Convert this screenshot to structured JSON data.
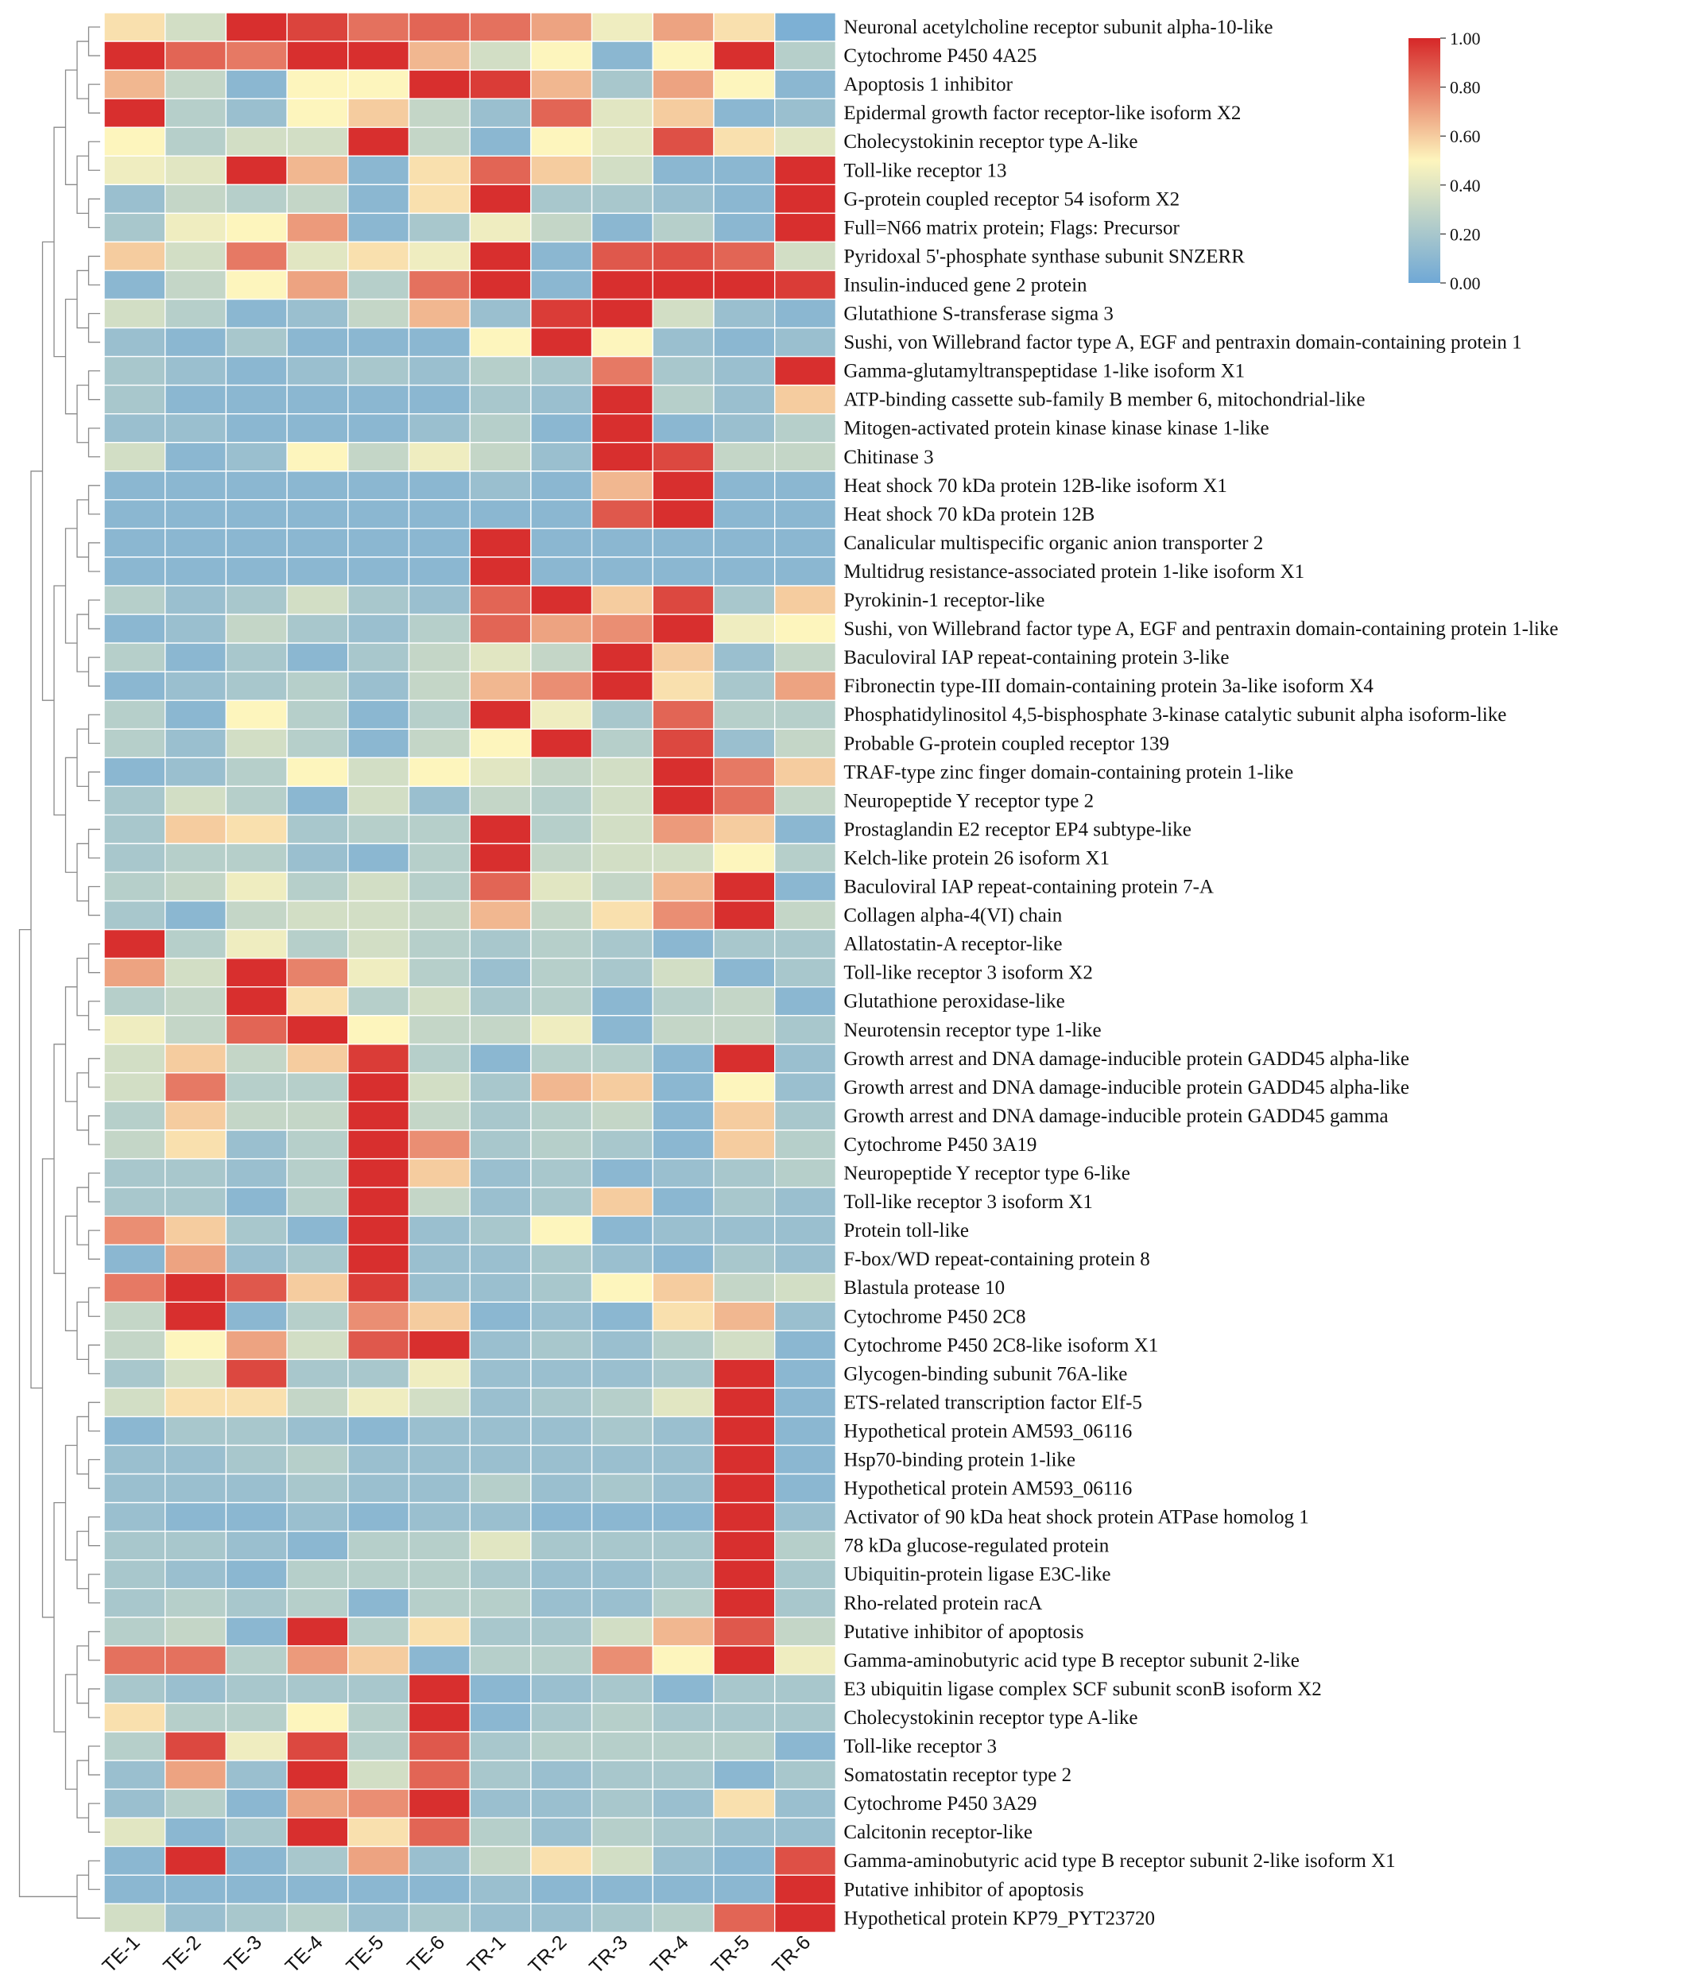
{
  "chart_data": {
    "type": "heatmap",
    "title": "",
    "columns": [
      "TE-1",
      "TE-2",
      "TE-3",
      "TE-4",
      "TE-5",
      "TE-6",
      "TR-1",
      "TR-2",
      "TR-3",
      "TR-4",
      "TR-5",
      "TR-6"
    ],
    "rows": [
      "Neuronal acetylcholine receptor subunit alpha-10-like",
      "Cytochrome P450 4A25",
      "Apoptosis 1 inhibitor",
      "Epidermal growth factor receptor-like isoform X2",
      "Cholecystokinin receptor type A-like",
      "Toll-like receptor 13",
      "G-protein coupled receptor 54 isoform X2",
      "Full=N66 matrix protein; Flags: Precursor",
      "Pyridoxal 5'-phosphate synthase subunit SNZERR",
      "Insulin-induced gene 2 protein",
      "Glutathione S-transferase sigma 3",
      "Sushi, von Willebrand factor type A, EGF and pentraxin domain-containing protein 1",
      "Gamma-glutamyltranspeptidase 1-like isoform X1",
      "ATP-binding cassette sub-family B member 6, mitochondrial-like",
      "Mitogen-activated protein kinase kinase kinase 1-like",
      "Chitinase 3",
      "Heat shock 70 kDa protein 12B-like isoform X1",
      "Heat shock 70 kDa protein 12B",
      "Canalicular multispecific organic anion transporter 2",
      "Multidrug resistance-associated protein 1-like isoform X1",
      "Pyrokinin-1 receptor-like",
      "Sushi, von Willebrand factor type A, EGF and pentraxin domain-containing protein 1-like",
      "Baculoviral IAP repeat-containing protein 3-like",
      "Fibronectin type-III domain-containing protein 3a-like isoform X4",
      "Phosphatidylinositol 4,5-bisphosphate 3-kinase catalytic subunit alpha isoform-like",
      "Probable G-protein coupled receptor 139",
      "TRAF-type zinc finger domain-containing protein 1-like",
      "Neuropeptide Y receptor type 2",
      "Prostaglandin E2 receptor EP4 subtype-like",
      "Kelch-like protein 26 isoform X1",
      "Baculoviral IAP repeat-containing protein 7-A",
      "Collagen alpha-4(VI) chain",
      "Allatostatin-A receptor-like",
      "Toll-like receptor 3 isoform X2",
      "Glutathione peroxidase-like",
      "Neurotensin receptor type 1-like",
      "Growth arrest and DNA damage-inducible protein GADD45 alpha-like",
      "Growth arrest and DNA damage-inducible protein GADD45 alpha-like",
      "Growth arrest and DNA damage-inducible protein GADD45 gamma",
      "Cytochrome P450 3A19",
      "Neuropeptide Y receptor type 6-like",
      "Toll-like receptor 3 isoform X1",
      "Protein toll-like",
      "F-box/WD repeat-containing protein 8",
      "Blastula protease 10",
      "Cytochrome P450 2C8",
      "Cytochrome P450 2C8-like isoform X1",
      "Glycogen-binding subunit 76A-like",
      "ETS-related transcription factor Elf-5",
      "Hypothetical protein AM593_06116",
      "Hsp70-binding protein 1-like",
      "Hypothetical protein AM593_06116",
      "Activator of 90 kDa heat shock protein ATPase homolog 1",
      "78 kDa glucose-regulated protein",
      "Ubiquitin-protein ligase E3C-like",
      "Rho-related protein racA",
      "Putative inhibitor of apoptosis",
      "Gamma-aminobutyric acid type B receptor subunit 2-like",
      "E3 ubiquitin ligase complex SCF subunit sconB isoform X2",
      "Cholecystokinin receptor type A-like",
      "Toll-like receptor 3",
      "Somatostatin receptor type 2",
      "Cytochrome P450 3A29",
      "Calcitonin receptor-like",
      "Gamma-aminobutyric acid type B receptor subunit 2-like isoform X1",
      "Putative inhibitor of apoptosis",
      "Hypothetical protein KP79_PYT23720"
    ],
    "values": [
      [
        0.55,
        0.35,
        0.98,
        0.93,
        0.82,
        0.85,
        0.82,
        0.7,
        0.45,
        0.7,
        0.55,
        0.05
      ],
      [
        0.98,
        0.85,
        0.8,
        0.98,
        0.98,
        0.65,
        0.35,
        0.5,
        0.1,
        0.5,
        0.98,
        0.25
      ],
      [
        0.65,
        0.3,
        0.1,
        0.5,
        0.5,
        0.98,
        0.95,
        0.65,
        0.2,
        0.7,
        0.5,
        0.1
      ],
      [
        0.98,
        0.25,
        0.15,
        0.5,
        0.6,
        0.3,
        0.15,
        0.85,
        0.4,
        0.6,
        0.1,
        0.15
      ],
      [
        0.5,
        0.25,
        0.35,
        0.35,
        0.98,
        0.3,
        0.1,
        0.5,
        0.4,
        0.9,
        0.55,
        0.4
      ],
      [
        0.45,
        0.4,
        0.98,
        0.65,
        0.1,
        0.55,
        0.85,
        0.6,
        0.35,
        0.1,
        0.1,
        0.98
      ],
      [
        0.15,
        0.3,
        0.25,
        0.3,
        0.1,
        0.55,
        0.98,
        0.2,
        0.2,
        0.15,
        0.1,
        0.98
      ],
      [
        0.2,
        0.45,
        0.5,
        0.72,
        0.1,
        0.2,
        0.45,
        0.3,
        0.1,
        0.25,
        0.1,
        0.98
      ],
      [
        0.6,
        0.35,
        0.8,
        0.4,
        0.55,
        0.45,
        0.98,
        0.1,
        0.88,
        0.9,
        0.85,
        0.35
      ],
      [
        0.1,
        0.3,
        0.5,
        0.7,
        0.25,
        0.82,
        0.98,
        0.1,
        0.98,
        0.98,
        0.98,
        0.95
      ],
      [
        0.35,
        0.25,
        0.1,
        0.15,
        0.3,
        0.65,
        0.15,
        0.95,
        0.98,
        0.35,
        0.15,
        0.1
      ],
      [
        0.15,
        0.1,
        0.2,
        0.1,
        0.1,
        0.1,
        0.5,
        0.98,
        0.5,
        0.15,
        0.1,
        0.15
      ],
      [
        0.2,
        0.15,
        0.1,
        0.15,
        0.2,
        0.15,
        0.25,
        0.2,
        0.8,
        0.2,
        0.15,
        0.98
      ],
      [
        0.2,
        0.1,
        0.1,
        0.1,
        0.1,
        0.1,
        0.2,
        0.15,
        0.98,
        0.25,
        0.15,
        0.6
      ],
      [
        0.15,
        0.15,
        0.1,
        0.1,
        0.1,
        0.15,
        0.25,
        0.1,
        0.98,
        0.1,
        0.15,
        0.25
      ],
      [
        0.35,
        0.1,
        0.15,
        0.5,
        0.3,
        0.45,
        0.3,
        0.15,
        0.98,
        0.92,
        0.3,
        0.3
      ],
      [
        0.1,
        0.1,
        0.1,
        0.1,
        0.1,
        0.1,
        0.15,
        0.1,
        0.65,
        0.98,
        0.1,
        0.1
      ],
      [
        0.1,
        0.1,
        0.1,
        0.1,
        0.1,
        0.1,
        0.1,
        0.1,
        0.88,
        0.98,
        0.1,
        0.1
      ],
      [
        0.1,
        0.1,
        0.1,
        0.1,
        0.1,
        0.1,
        0.98,
        0.1,
        0.1,
        0.1,
        0.1,
        0.1
      ],
      [
        0.1,
        0.1,
        0.1,
        0.1,
        0.1,
        0.1,
        0.98,
        0.1,
        0.1,
        0.1,
        0.1,
        0.1
      ],
      [
        0.25,
        0.15,
        0.2,
        0.35,
        0.2,
        0.15,
        0.85,
        0.98,
        0.6,
        0.92,
        0.2,
        0.6
      ],
      [
        0.1,
        0.15,
        0.3,
        0.2,
        0.15,
        0.25,
        0.85,
        0.7,
        0.75,
        0.98,
        0.45,
        0.5
      ],
      [
        0.25,
        0.1,
        0.2,
        0.1,
        0.2,
        0.3,
        0.4,
        0.3,
        0.98,
        0.6,
        0.15,
        0.3
      ],
      [
        0.1,
        0.15,
        0.2,
        0.25,
        0.15,
        0.3,
        0.65,
        0.75,
        0.98,
        0.55,
        0.2,
        0.7
      ],
      [
        0.25,
        0.1,
        0.5,
        0.25,
        0.1,
        0.25,
        0.98,
        0.45,
        0.2,
        0.85,
        0.25,
        0.25
      ],
      [
        0.25,
        0.15,
        0.35,
        0.25,
        0.1,
        0.3,
        0.5,
        0.98,
        0.25,
        0.92,
        0.15,
        0.3
      ],
      [
        0.1,
        0.15,
        0.25,
        0.5,
        0.35,
        0.5,
        0.4,
        0.3,
        0.35,
        0.98,
        0.8,
        0.6
      ],
      [
        0.2,
        0.35,
        0.25,
        0.1,
        0.35,
        0.15,
        0.3,
        0.25,
        0.35,
        0.98,
        0.82,
        0.3
      ],
      [
        0.2,
        0.6,
        0.55,
        0.2,
        0.25,
        0.25,
        0.98,
        0.25,
        0.35,
        0.72,
        0.6,
        0.1
      ],
      [
        0.2,
        0.25,
        0.25,
        0.15,
        0.1,
        0.25,
        0.98,
        0.3,
        0.35,
        0.35,
        0.5,
        0.25
      ],
      [
        0.25,
        0.3,
        0.45,
        0.25,
        0.35,
        0.25,
        0.85,
        0.4,
        0.3,
        0.65,
        0.98,
        0.1
      ],
      [
        0.2,
        0.1,
        0.3,
        0.35,
        0.35,
        0.3,
        0.65,
        0.3,
        0.55,
        0.75,
        0.98,
        0.3
      ],
      [
        0.98,
        0.25,
        0.45,
        0.25,
        0.35,
        0.25,
        0.2,
        0.25,
        0.2,
        0.1,
        0.2,
        0.2
      ],
      [
        0.7,
        0.35,
        0.98,
        0.78,
        0.45,
        0.25,
        0.15,
        0.25,
        0.2,
        0.35,
        0.1,
        0.2
      ],
      [
        0.25,
        0.3,
        0.98,
        0.55,
        0.25,
        0.35,
        0.2,
        0.25,
        0.1,
        0.25,
        0.3,
        0.1
      ],
      [
        0.45,
        0.3,
        0.85,
        0.98,
        0.5,
        0.3,
        0.3,
        0.45,
        0.1,
        0.3,
        0.3,
        0.2
      ],
      [
        0.35,
        0.6,
        0.3,
        0.6,
        0.95,
        0.25,
        0.1,
        0.25,
        0.25,
        0.1,
        0.98,
        0.15
      ],
      [
        0.35,
        0.8,
        0.25,
        0.25,
        0.98,
        0.35,
        0.2,
        0.65,
        0.6,
        0.1,
        0.5,
        0.15
      ],
      [
        0.25,
        0.6,
        0.3,
        0.3,
        0.98,
        0.3,
        0.2,
        0.25,
        0.3,
        0.1,
        0.6,
        0.2
      ],
      [
        0.3,
        0.55,
        0.15,
        0.25,
        0.98,
        0.75,
        0.2,
        0.25,
        0.2,
        0.1,
        0.6,
        0.25
      ],
      [
        0.2,
        0.2,
        0.15,
        0.25,
        0.98,
        0.6,
        0.15,
        0.2,
        0.1,
        0.15,
        0.2,
        0.25
      ],
      [
        0.2,
        0.2,
        0.1,
        0.25,
        0.98,
        0.3,
        0.15,
        0.2,
        0.6,
        0.1,
        0.2,
        0.15
      ],
      [
        0.75,
        0.6,
        0.2,
        0.1,
        0.98,
        0.15,
        0.2,
        0.5,
        0.1,
        0.15,
        0.15,
        0.15
      ],
      [
        0.1,
        0.7,
        0.15,
        0.2,
        0.98,
        0.15,
        0.15,
        0.2,
        0.15,
        0.1,
        0.2,
        0.15
      ],
      [
        0.8,
        0.98,
        0.88,
        0.6,
        0.95,
        0.15,
        0.15,
        0.2,
        0.5,
        0.6,
        0.3,
        0.35
      ],
      [
        0.3,
        0.98,
        0.1,
        0.25,
        0.75,
        0.6,
        0.1,
        0.15,
        0.1,
        0.55,
        0.65,
        0.15
      ],
      [
        0.3,
        0.5,
        0.7,
        0.35,
        0.88,
        0.98,
        0.15,
        0.2,
        0.15,
        0.25,
        0.35,
        0.1
      ],
      [
        0.2,
        0.35,
        0.92,
        0.2,
        0.2,
        0.45,
        0.15,
        0.15,
        0.15,
        0.2,
        0.98,
        0.1
      ],
      [
        0.35,
        0.55,
        0.55,
        0.3,
        0.45,
        0.35,
        0.15,
        0.2,
        0.25,
        0.4,
        0.98,
        0.1
      ],
      [
        0.1,
        0.2,
        0.2,
        0.15,
        0.1,
        0.15,
        0.15,
        0.15,
        0.2,
        0.15,
        0.98,
        0.1
      ],
      [
        0.15,
        0.15,
        0.2,
        0.25,
        0.15,
        0.15,
        0.15,
        0.15,
        0.15,
        0.15,
        0.98,
        0.1
      ],
      [
        0.15,
        0.15,
        0.15,
        0.2,
        0.15,
        0.15,
        0.25,
        0.15,
        0.2,
        0.15,
        0.98,
        0.1
      ],
      [
        0.15,
        0.1,
        0.1,
        0.15,
        0.1,
        0.15,
        0.15,
        0.1,
        0.1,
        0.1,
        0.98,
        0.15
      ],
      [
        0.2,
        0.2,
        0.15,
        0.1,
        0.25,
        0.25,
        0.4,
        0.2,
        0.2,
        0.2,
        0.98,
        0.25
      ],
      [
        0.2,
        0.15,
        0.1,
        0.25,
        0.25,
        0.25,
        0.2,
        0.15,
        0.15,
        0.2,
        0.98,
        0.2
      ],
      [
        0.2,
        0.25,
        0.2,
        0.25,
        0.1,
        0.25,
        0.25,
        0.15,
        0.15,
        0.25,
        0.98,
        0.2
      ],
      [
        0.25,
        0.3,
        0.1,
        0.98,
        0.25,
        0.55,
        0.2,
        0.2,
        0.35,
        0.65,
        0.88,
        0.3
      ],
      [
        0.82,
        0.82,
        0.25,
        0.72,
        0.6,
        0.1,
        0.25,
        0.25,
        0.75,
        0.5,
        0.98,
        0.45
      ],
      [
        0.2,
        0.15,
        0.2,
        0.2,
        0.2,
        0.98,
        0.1,
        0.15,
        0.2,
        0.1,
        0.2,
        0.2
      ],
      [
        0.55,
        0.25,
        0.25,
        0.5,
        0.25,
        0.98,
        0.1,
        0.2,
        0.25,
        0.2,
        0.2,
        0.2
      ],
      [
        0.25,
        0.92,
        0.45,
        0.92,
        0.25,
        0.88,
        0.2,
        0.25,
        0.25,
        0.25,
        0.25,
        0.1
      ],
      [
        0.15,
        0.7,
        0.15,
        0.98,
        0.35,
        0.85,
        0.2,
        0.15,
        0.2,
        0.2,
        0.1,
        0.2
      ],
      [
        0.15,
        0.25,
        0.1,
        0.7,
        0.75,
        0.98,
        0.15,
        0.15,
        0.2,
        0.15,
        0.55,
        0.15
      ],
      [
        0.4,
        0.1,
        0.2,
        0.98,
        0.55,
        0.85,
        0.25,
        0.15,
        0.25,
        0.2,
        0.15,
        0.15
      ],
      [
        0.1,
        0.98,
        0.1,
        0.2,
        0.7,
        0.15,
        0.3,
        0.55,
        0.35,
        0.15,
        0.1,
        0.9
      ],
      [
        0.1,
        0.1,
        0.1,
        0.1,
        0.1,
        0.1,
        0.15,
        0.1,
        0.1,
        0.1,
        0.1,
        0.98
      ],
      [
        0.35,
        0.15,
        0.2,
        0.25,
        0.15,
        0.2,
        0.15,
        0.15,
        0.2,
        0.25,
        0.85,
        0.98
      ]
    ],
    "color_scale": {
      "min": 0.0,
      "max": 1.0,
      "stops": [
        "#6fa8d6",
        "#fdf5bd",
        "#d62728"
      ],
      "ticks": [
        "0.00",
        "0.20",
        "0.40",
        "0.60",
        "0.80",
        "1.00"
      ]
    },
    "xlabel": "",
    "ylabel": "",
    "row_dendrogram": true,
    "legend_position": "top-right"
  }
}
